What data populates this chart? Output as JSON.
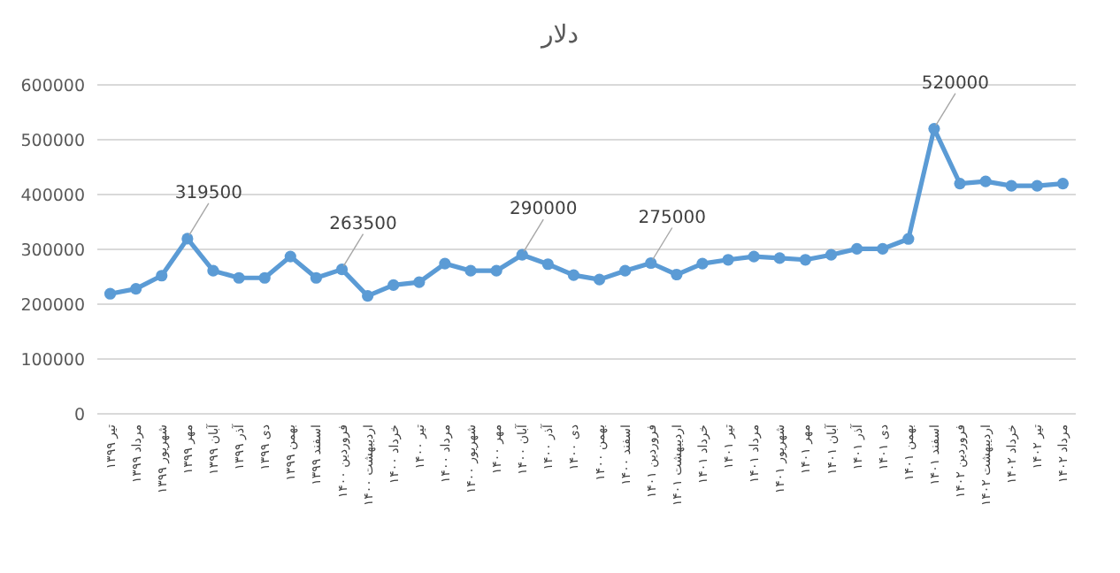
{
  "chart_data": {
    "type": "line",
    "title": "دلار",
    "categories": [
      "تیر ۱۳۹۹",
      "مرداد ۱۳۹۹",
      "شهریور ۱۳۹۹",
      "مهر ۱۳۹۹",
      "آبان ۱۳۹۹",
      "آذر ۱۳۹۹",
      "دی ۱۳۹۹",
      "بهمن ۱۳۹۹",
      "اسفند ۱۳۹۹",
      "فروردین ۱۴۰۰",
      "اردیبهشت ۱۴۰۰",
      "خرداد ۱۴۰۰",
      "تیر ۱۴۰۰",
      "مرداد ۱۴۰۰",
      "شهریور ۱۴۰۰",
      "مهر ۱۴۰۰",
      "آبان ۱۴۰۰",
      "آذر ۱۴۰۰",
      "دی ۱۴۰۰",
      "بهمن ۱۴۰۰",
      "اسفند ۱۴۰۰",
      "فروردین ۱۴۰۱",
      "اردیبهشت ۱۴۰۱",
      "خرداد ۱۴۰۱",
      "تیر ۱۴۰۱",
      "مرداد ۱۴۰۱",
      "شهریور ۱۴۰۱",
      "مهر ۱۴۰۱",
      "آبان ۱۴۰۱",
      "آذر ۱۴۰۱",
      "دی ۱۴۰۱",
      "بهمن ۱۴۰۱",
      "اسفند ۱۴۰۱",
      "فروردین ۱۴۰۲",
      "اردیبهشت ۱۴۰۲",
      "خرداد ۱۴۰۲",
      "تیر ۱۴۰۲",
      "مرداد ۱۴۰۲"
    ],
    "series": [
      {
        "color": "#5b9bd5",
        "values": [
          219000,
          228000,
          252000,
          319500,
          261000,
          248000,
          248000,
          287000,
          248000,
          263500,
          215000,
          235000,
          240000,
          274000,
          261000,
          261000,
          290000,
          273000,
          253000,
          245000,
          261000,
          275000,
          254000,
          274000,
          281000,
          287000,
          284000,
          281000,
          290000,
          301000,
          301000,
          319000,
          520000,
          420000,
          424000,
          416000,
          416000,
          420000
        ],
        "value_labels": [
          null,
          null,
          null,
          "319500",
          null,
          null,
          null,
          null,
          null,
          "263500",
          null,
          null,
          null,
          null,
          null,
          null,
          "290000",
          null,
          null,
          null,
          null,
          "275000",
          null,
          null,
          null,
          null,
          null,
          null,
          null,
          null,
          null,
          null,
          "520000",
          null,
          null,
          null,
          null,
          null
        ]
      }
    ],
    "ylim": [
      0,
      600000
    ],
    "yticks": [
      0,
      100000,
      200000,
      300000,
      400000,
      500000,
      600000
    ],
    "grid": "y",
    "marker": "circle",
    "line_style": "solid"
  }
}
